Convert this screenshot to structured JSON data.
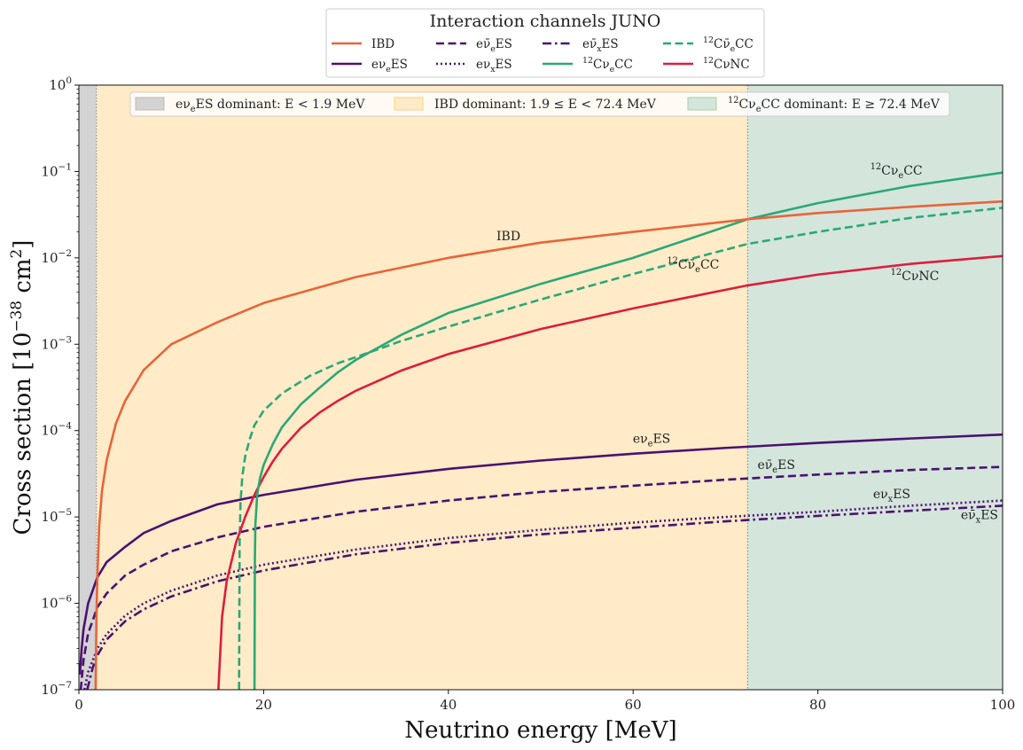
{
  "chart_data": {
    "type": "line",
    "xlabel": "Neutrino energy [MeV]",
    "ylabel": "Cross section [10^−38 cm²]",
    "xlim": [
      0,
      100
    ],
    "ylim": [
      1e-07,
      1
    ],
    "yscale": "log",
    "x_ticks": [
      0,
      20,
      40,
      60,
      80,
      100
    ],
    "y_ticks": [
      1e-07,
      1e-06,
      1e-05,
      0.0001,
      0.001,
      0.01,
      0.1,
      1
    ],
    "y_tick_labels": [
      {
        "base": "10",
        "exp": "−7"
      },
      {
        "base": "10",
        "exp": "−6"
      },
      {
        "base": "10",
        "exp": "−5"
      },
      {
        "base": "10",
        "exp": "−4"
      },
      {
        "base": "10",
        "exp": "−3"
      },
      {
        "base": "10",
        "exp": "−2"
      },
      {
        "base": "10",
        "exp": "−1"
      },
      {
        "base": "10",
        "exp": "0"
      }
    ],
    "legend": {
      "title": "Interaction channels JUNO",
      "placement": "top-center, above plot",
      "columns": 4
    },
    "regions": [
      {
        "label": "eνeES dominant: E < 1.9 MeV",
        "x0": 0,
        "x1": 1.9,
        "color": "#d3d3d3"
      },
      {
        "label": "IBD dominant: 1.9 ≤ E < 72.4 MeV",
        "x0": 1.9,
        "x1": 72.4,
        "color": "#ffebc7"
      },
      {
        "label": "12CνeCC dominant: E ≥ 72.4 MeV",
        "x0": 72.4,
        "x1": 100,
        "color": "#d4e5dc"
      }
    ],
    "series": [
      {
        "key": "ibd",
        "name": "IBD",
        "color": "#e8643a",
        "dash": "solid",
        "x": [
          1.81,
          1.9,
          2.0,
          2.2,
          2.5,
          3,
          4,
          5,
          7,
          10,
          15,
          20,
          30,
          40,
          50,
          60,
          72.4,
          80,
          90,
          100
        ],
        "y": [
          1e-07,
          7e-07,
          2e-06,
          8e-06,
          2e-05,
          4.5e-05,
          0.00012,
          0.00022,
          0.0005,
          0.001,
          0.0018,
          0.003,
          0.006,
          0.01,
          0.015,
          0.02,
          0.028,
          0.033,
          0.039,
          0.045
        ]
      },
      {
        "key": "nue_es",
        "name": "eνeES",
        "color": "#4b1170",
        "dash": "solid",
        "x": [
          0.1,
          0.3,
          0.5,
          1,
          2,
          3,
          5,
          7,
          10,
          15,
          20,
          30,
          40,
          50,
          60,
          70,
          80,
          90,
          100
        ],
        "y": [
          1.5e-07,
          3e-07,
          5e-07,
          1e-06,
          2e-06,
          3e-06,
          4.5e-06,
          6.5e-06,
          9e-06,
          1.4e-05,
          1.8e-05,
          2.7e-05,
          3.6e-05,
          4.5e-05,
          5.4e-05,
          6.3e-05,
          7.2e-05,
          8.1e-05,
          9e-05
        ]
      },
      {
        "key": "nuebar_es",
        "name": "eν̄eES",
        "color": "#4b1170",
        "dash": "dashed",
        "x": [
          0.2,
          0.5,
          1,
          2,
          3,
          5,
          7,
          10,
          15,
          20,
          30,
          40,
          50,
          60,
          70,
          80,
          90,
          100
        ],
        "y": [
          1e-07,
          2.2e-07,
          4.5e-07,
          9e-07,
          1.3e-06,
          2.1e-06,
          2.8e-06,
          4e-06,
          5.8e-06,
          7.7e-06,
          1.15e-05,
          1.55e-05,
          1.95e-05,
          2.3e-05,
          2.7e-05,
          3.1e-05,
          3.5e-05,
          3.8e-05
        ]
      },
      {
        "key": "nuxbar_es",
        "name": "eν̄xES",
        "color": "#4b1170",
        "dash": "dashdot",
        "x": [
          0.9,
          1.5,
          2,
          3,
          5,
          7,
          10,
          15,
          20,
          30,
          40,
          50,
          60,
          70,
          80,
          90,
          100
        ],
        "y": [
          1e-07,
          1.8e-07,
          2.5e-07,
          3.8e-07,
          6.2e-07,
          8.5e-07,
          1.2e-06,
          1.8e-06,
          2.4e-06,
          3.7e-06,
          5e-06,
          6.3e-06,
          7.5e-06,
          8.9e-06,
          1.03e-05,
          1.18e-05,
          1.35e-05
        ]
      },
      {
        "key": "nux_es",
        "name": "eνxES",
        "color": "#4b1170",
        "dash": "dotted",
        "x": [
          0.6,
          1,
          2,
          3,
          5,
          7,
          10,
          15,
          20,
          30,
          40,
          50,
          60,
          70,
          80,
          90,
          100
        ],
        "y": [
          1e-07,
          1.6e-07,
          3e-07,
          4.4e-07,
          7.2e-07,
          1e-06,
          1.4e-06,
          2.1e-06,
          2.8e-06,
          4.2e-06,
          5.7e-06,
          7.1e-06,
          8.6e-06,
          1e-05,
          1.15e-05,
          1.35e-05,
          1.55e-05
        ]
      },
      {
        "key": "c12_nue_cc",
        "name": "12CνeCC",
        "color": "#2aa876",
        "dash": "solid",
        "x": [
          19.01,
          19.05,
          19.1,
          19.3,
          19.6,
          20,
          21,
          22,
          24,
          26,
          28,
          30,
          35,
          40,
          50,
          60,
          72.4,
          80,
          90,
          100
        ],
        "y": [
          1e-07,
          3e-06,
          8e-06,
          1.8e-05,
          2.8e-05,
          4e-05,
          7e-05,
          0.00011,
          0.0002,
          0.00031,
          0.00047,
          0.00066,
          0.0013,
          0.0023,
          0.005,
          0.01,
          0.028,
          0.043,
          0.068,
          0.097
        ]
      },
      {
        "key": "c12_nuebar_cc",
        "name": "12Cν̄eCC",
        "color": "#2aa876",
        "dash": "dashed",
        "x": [
          17.34,
          17.4,
          17.5,
          17.7,
          18,
          18.5,
          19,
          20,
          22,
          25,
          28,
          30,
          35,
          40,
          50,
          60,
          72.4,
          80,
          90,
          100
        ],
        "y": [
          1e-07,
          5e-06,
          1.5e-05,
          3e-05,
          5e-05,
          8e-05,
          0.000115,
          0.00017,
          0.00027,
          0.00043,
          0.0006,
          0.00071,
          0.0011,
          0.0016,
          0.0033,
          0.0065,
          0.0145,
          0.02,
          0.029,
          0.038
        ]
      },
      {
        "key": "c12_nu_nc",
        "name": "12CνNC",
        "color": "#dc1e3c",
        "dash": "solid",
        "x": [
          15.1,
          15.5,
          16,
          17,
          18,
          19,
          20,
          21,
          22,
          24,
          26,
          28,
          30,
          35,
          40,
          50,
          60,
          72.4,
          80,
          90,
          100
        ],
        "y": [
          1e-07,
          7e-07,
          1.8e-06,
          5e-06,
          1e-05,
          1.8e-05,
          2.9e-05,
          4.4e-05,
          6.2e-05,
          0.000107,
          0.00016,
          0.00022,
          0.00029,
          0.0005,
          0.00077,
          0.0015,
          0.0026,
          0.0048,
          0.0064,
          0.0085,
          0.0105
        ]
      }
    ],
    "annotations": [
      {
        "key": "ibd",
        "base": "IBD",
        "x": 46.5,
        "y": 0.016
      },
      {
        "key": "nue_es",
        "base": "eνeES",
        "x": 62.0,
        "y": 7.2e-05
      },
      {
        "key": "c12_nue_cc",
        "base": "12CνeCC",
        "x": 88.5,
        "y": 0.092
      },
      {
        "key": "c12_nuebar_cc",
        "base": "12Cν̄eCC",
        "x": 66.5,
        "y": 0.0075
      },
      {
        "key": "c12_nu_nc",
        "base": "12CνNC",
        "x": 90.5,
        "y": 0.0055
      },
      {
        "key": "nuebar_es",
        "base": "eν̄eES",
        "x": 75.5,
        "y": 3.6e-05
      },
      {
        "key": "nux_es",
        "base": "eνxES",
        "x": 88.0,
        "y": 1.65e-05
      },
      {
        "key": "nuxbar_es",
        "base": "eν̄xES",
        "x": 97.5,
        "y": 9.5e-06
      }
    ]
  }
}
